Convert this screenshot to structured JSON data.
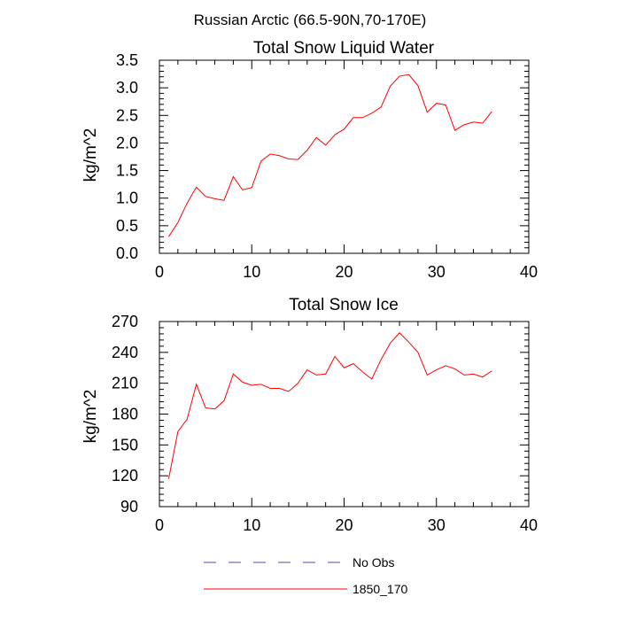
{
  "figure_title": "Russian Arctic (66.5-90N,70-170E)",
  "chart_data": [
    {
      "type": "line",
      "title": "Total Snow Liquid Water",
      "xlabel": "",
      "ylabel": "kg/m^2",
      "xlim": [
        0,
        40
      ],
      "ylim": [
        0,
        3.5
      ],
      "xticks": [
        0,
        10,
        20,
        30,
        40
      ],
      "yticks": [
        0,
        0.5,
        1,
        1.5,
        2,
        2.5,
        3,
        3.5
      ],
      "xtick_labels": [
        "0",
        "10",
        "20",
        "30",
        "40"
      ],
      "ytick_labels": [
        "0.0",
        "0.5",
        "1.0",
        "1.5",
        "2.0",
        "2.5",
        "3.0",
        "3.5"
      ],
      "grid": false,
      "series": [
        {
          "name": "1850_170",
          "color": "#ff0000",
          "x": [
            1,
            2,
            3,
            4,
            5,
            6,
            7,
            8,
            9,
            10,
            11,
            12,
            13,
            14,
            15,
            16,
            17,
            18,
            19,
            20,
            21,
            22,
            23,
            24,
            25,
            26,
            27,
            28,
            29,
            30,
            31,
            32,
            33,
            34,
            35,
            36
          ],
          "y": [
            0.3,
            0.56,
            0.91,
            1.2,
            1.03,
            0.99,
            0.96,
            1.39,
            1.15,
            1.19,
            1.67,
            1.8,
            1.77,
            1.71,
            1.7,
            1.87,
            2.1,
            1.96,
            2.15,
            2.25,
            2.46,
            2.46,
            2.54,
            2.65,
            3.03,
            3.21,
            3.24,
            3.04,
            2.56,
            2.72,
            2.69,
            2.23,
            2.33,
            2.38,
            2.36,
            2.57
          ]
        }
      ]
    },
    {
      "type": "line",
      "title": "Total Snow Ice",
      "xlabel": "",
      "ylabel": "kg/m^2",
      "xlim": [
        0,
        40
      ],
      "ylim": [
        90,
        270
      ],
      "xticks": [
        0,
        10,
        20,
        30,
        40
      ],
      "yticks": [
        90,
        120,
        150,
        180,
        210,
        240,
        270
      ],
      "xtick_labels": [
        "0",
        "10",
        "20",
        "30",
        "40"
      ],
      "ytick_labels": [
        "90",
        "120",
        "150",
        "180",
        "210",
        "240",
        "270"
      ],
      "grid": false,
      "series": [
        {
          "name": "1850_170",
          "color": "#ff0000",
          "x": [
            1,
            2,
            3,
            4,
            5,
            6,
            7,
            8,
            9,
            10,
            11,
            12,
            13,
            14,
            15,
            16,
            17,
            18,
            19,
            20,
            21,
            22,
            23,
            24,
            25,
            26,
            27,
            28,
            29,
            30,
            31,
            32,
            33,
            34,
            35,
            36
          ],
          "y": [
            117,
            163,
            175,
            209,
            186,
            185,
            193,
            219,
            211,
            208,
            209,
            205,
            205,
            202,
            210,
            223,
            218,
            219,
            236,
            225,
            229,
            221,
            214,
            233,
            249,
            259,
            250,
            240,
            218,
            223,
            227,
            224,
            218,
            219,
            216,
            222
          ]
        }
      ]
    }
  ],
  "legend": {
    "placement": "bottom-center",
    "items": [
      {
        "label": "No Obs",
        "color": "#4b4bb0",
        "style": "dashed"
      },
      {
        "label": "1850_170",
        "color": "#ff0000",
        "style": "solid"
      }
    ]
  }
}
